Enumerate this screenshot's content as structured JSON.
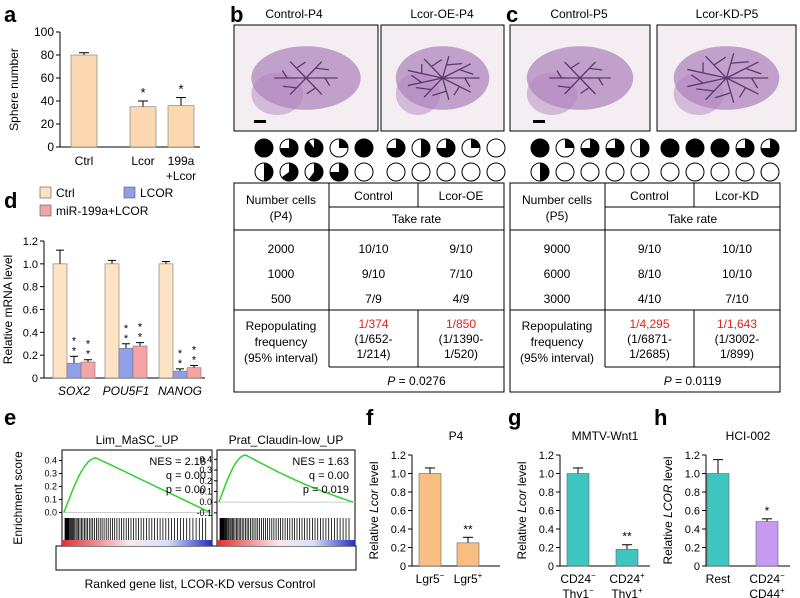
{
  "panels": {
    "a": {
      "letter": "a"
    },
    "b": {
      "letter": "b",
      "titles": [
        "Control-P4",
        "Lcor-OE-P4"
      ]
    },
    "c": {
      "letter": "c",
      "titles": [
        "Control-P5",
        "Lcor-KD-P5"
      ]
    },
    "d": {
      "letter": "d"
    },
    "e": {
      "letter": "e"
    },
    "f": {
      "letter": "f"
    },
    "g": {
      "letter": "g"
    },
    "h": {
      "letter": "h"
    }
  },
  "tables": {
    "b": {
      "header_cells": [
        "Number cells",
        "(P4)"
      ],
      "col_heads": [
        "Control",
        "Lcor-OE"
      ],
      "subhead": "Take rate",
      "rows": [
        [
          "2000",
          "10/10",
          "9/10"
        ],
        [
          "1000",
          "9/10",
          "7/10"
        ],
        [
          "500",
          "7/9",
          "4/9"
        ]
      ],
      "freq_label": [
        "Repopulating",
        "frequency",
        "(95% interval)"
      ],
      "freq_a": [
        "1/374",
        "(1/652-",
        "1/214)"
      ],
      "freq_b": [
        "1/850",
        "(1/1390-",
        "1/520)"
      ],
      "p_prefix": "P",
      "p_value": " = 0.0276"
    },
    "c": {
      "header_cells": [
        "Number cells",
        "(P5)"
      ],
      "col_heads": [
        "Control",
        "Lcor-KD"
      ],
      "subhead": "Take rate",
      "rows": [
        [
          "9000",
          "9/10",
          "10/10"
        ],
        [
          "6000",
          "8/10",
          "10/10"
        ],
        [
          "3000",
          "4/10",
          "7/10"
        ]
      ],
      "freq_label": [
        "Repopulating",
        "frequency",
        "(95% interval)"
      ],
      "freq_a": [
        "1/4,295",
        "(1/6871-",
        "1/2685)"
      ],
      "freq_b": [
        "1/1,643",
        "(1/3002-",
        "1/899)"
      ],
      "p_prefix": "P",
      "p_value": " = 0.0119"
    }
  },
  "gsea": {
    "ylabel": "Enrichment score",
    "xlabel": "Ranked gene list, LCOR-KD versus Control",
    "plots": [
      {
        "title": "Lim_MaSC_UP",
        "stats": [
          "NES = 2.18",
          "q = 0.00",
          "p = 0.00"
        ],
        "ticks": [
          "0.4",
          "0.3",
          "0.2",
          "0.1",
          "0.0"
        ]
      },
      {
        "title": "Prat_Claudin-low_UP",
        "stats": [
          "NES = 1.63",
          "q = 0.00",
          "p = 0.019"
        ],
        "ticks": [
          "0.4",
          "0.3",
          "0.2",
          "0.1",
          "0.0",
          "-0.1"
        ]
      }
    ]
  },
  "chart_data": [
    {
      "panel": "a",
      "type": "bar",
      "categories": [
        "Ctrl",
        "Lcor",
        "199a+Lcor"
      ],
      "category_lines": [
        [
          "Ctrl"
        ],
        [
          "Lcor"
        ],
        [
          "199a",
          "+Lcor"
        ]
      ],
      "values": [
        80,
        35,
        36
      ],
      "errors": [
        2,
        5,
        7
      ],
      "significance": [
        "",
        "*",
        "*"
      ],
      "ylabel": "Sphere number",
      "ylim": [
        0,
        100
      ],
      "yticks": [
        "0",
        "20",
        "40",
        "60",
        "80",
        "100"
      ],
      "colors": [
        "#fcd8b0"
      ]
    },
    {
      "panel": "d",
      "type": "bar",
      "categories": [
        "SOX2",
        "POU5F1",
        "NANOG"
      ],
      "series": [
        {
          "name": "Ctrl",
          "values": [
            1.0,
            1.0,
            1.0
          ],
          "errors": [
            0.12,
            0.03,
            0.02
          ],
          "color": "#fde3c4"
        },
        {
          "name": "LCOR",
          "values": [
            0.13,
            0.26,
            0.06
          ],
          "errors": [
            0.06,
            0.04,
            0.02
          ],
          "color": "#8fa0e8"
        },
        {
          "name": "miR-199a+LCOR",
          "values": [
            0.14,
            0.28,
            0.09
          ],
          "errors": [
            0.02,
            0.03,
            0.02
          ],
          "color": "#f4a4a4"
        }
      ],
      "significance": [
        [
          "",
          "* *",
          "* *"
        ],
        [
          "",
          "* *",
          "* *"
        ],
        [
          "",
          "* *",
          "* *"
        ]
      ],
      "ylabel": "Relative mRNA level",
      "ylim": [
        0,
        1.2
      ],
      "yticks": [
        "0",
        "0.2",
        "0.4",
        "0.6",
        "0.8",
        "1.0",
        "1.2"
      ]
    },
    {
      "panel": "f",
      "type": "bar",
      "title": "P4",
      "categories": [
        "Lgr5-",
        "Lgr5+"
      ],
      "cat_main": [
        "Lgr5",
        "Lgr5"
      ],
      "cat_sup": [
        "−",
        "+"
      ],
      "values": [
        1.0,
        0.25
      ],
      "errors": [
        0.06,
        0.06
      ],
      "significance": [
        "",
        "**"
      ],
      "ylabel_pre": "Relative ",
      "ylabel_ital": "Lcor",
      "ylabel_post": " level",
      "ylim": [
        0,
        1.2
      ],
      "yticks": [
        "0",
        "0.2",
        "0.4",
        "0.6",
        "0.8",
        "1.0",
        "1.2"
      ],
      "colors": [
        "#f8be82"
      ]
    },
    {
      "panel": "g",
      "type": "bar",
      "title": "MMTV-Wnt1",
      "categories": [
        "CD24- Thy1-",
        "CD24+ Thy1+"
      ],
      "cat_main": [
        "CD24",
        "CD24"
      ],
      "cat_sup": [
        "−",
        "+"
      ],
      "cat_main2": [
        "Thy1",
        "Thy1"
      ],
      "cat_sup2": [
        "−",
        "+"
      ],
      "values": [
        1.0,
        0.18
      ],
      "errors": [
        0.06,
        0.05
      ],
      "significance": [
        "",
        "**"
      ],
      "ylabel_pre": "Relative ",
      "ylabel_ital": "Lcor",
      "ylabel_post": " level",
      "ylim": [
        0,
        1.2
      ],
      "yticks": [
        "0",
        "0.2",
        "0.4",
        "0.6",
        "0.8",
        "1.0",
        "1.2"
      ],
      "colors": [
        "#3fc5c0"
      ]
    },
    {
      "panel": "h",
      "type": "bar",
      "title": "HCI-002",
      "categories": [
        "Rest",
        "CD24- CD44+"
      ],
      "cat_main": [
        "Rest",
        "CD24"
      ],
      "cat_sup": [
        "",
        "−"
      ],
      "cat_main2": [
        "",
        "CD44"
      ],
      "cat_sup2": [
        "",
        "+"
      ],
      "values": [
        1.0,
        0.48
      ],
      "errors": [
        0.15,
        0.03
      ],
      "significance": [
        "",
        "*"
      ],
      "ylabel_pre": "Relative ",
      "ylabel_ital": "LCOR",
      "ylabel_post": " level",
      "ylim": [
        0,
        1.2
      ],
      "yticks": [
        "0",
        "0.2",
        "0.4",
        "0.6",
        "0.8",
        "1.0",
        "1.2"
      ],
      "colors": [
        "#3fc5c0",
        "#c59af0"
      ]
    }
  ],
  "whole_mount_colors": {
    "tissue": "#b286bf",
    "duct": "#5a3a6a",
    "bg": "#f4eef2"
  },
  "pies": {
    "b": {
      "group1": [
        1,
        0.75,
        0.9,
        0.25,
        1,
        0.5,
        0.65,
        0.6,
        0.75,
        0
      ],
      "group2": [
        0.75,
        0.5,
        0.75,
        0.25,
        0,
        0,
        0,
        0,
        0,
        0
      ]
    },
    "c": {
      "group1": [
        1,
        0.25,
        0.75,
        0.75,
        0.5,
        0.5,
        0,
        0,
        0,
        0
      ],
      "group2": [
        1,
        1,
        1,
        0.75,
        0.75,
        0,
        0,
        0,
        0,
        0
      ]
    }
  }
}
